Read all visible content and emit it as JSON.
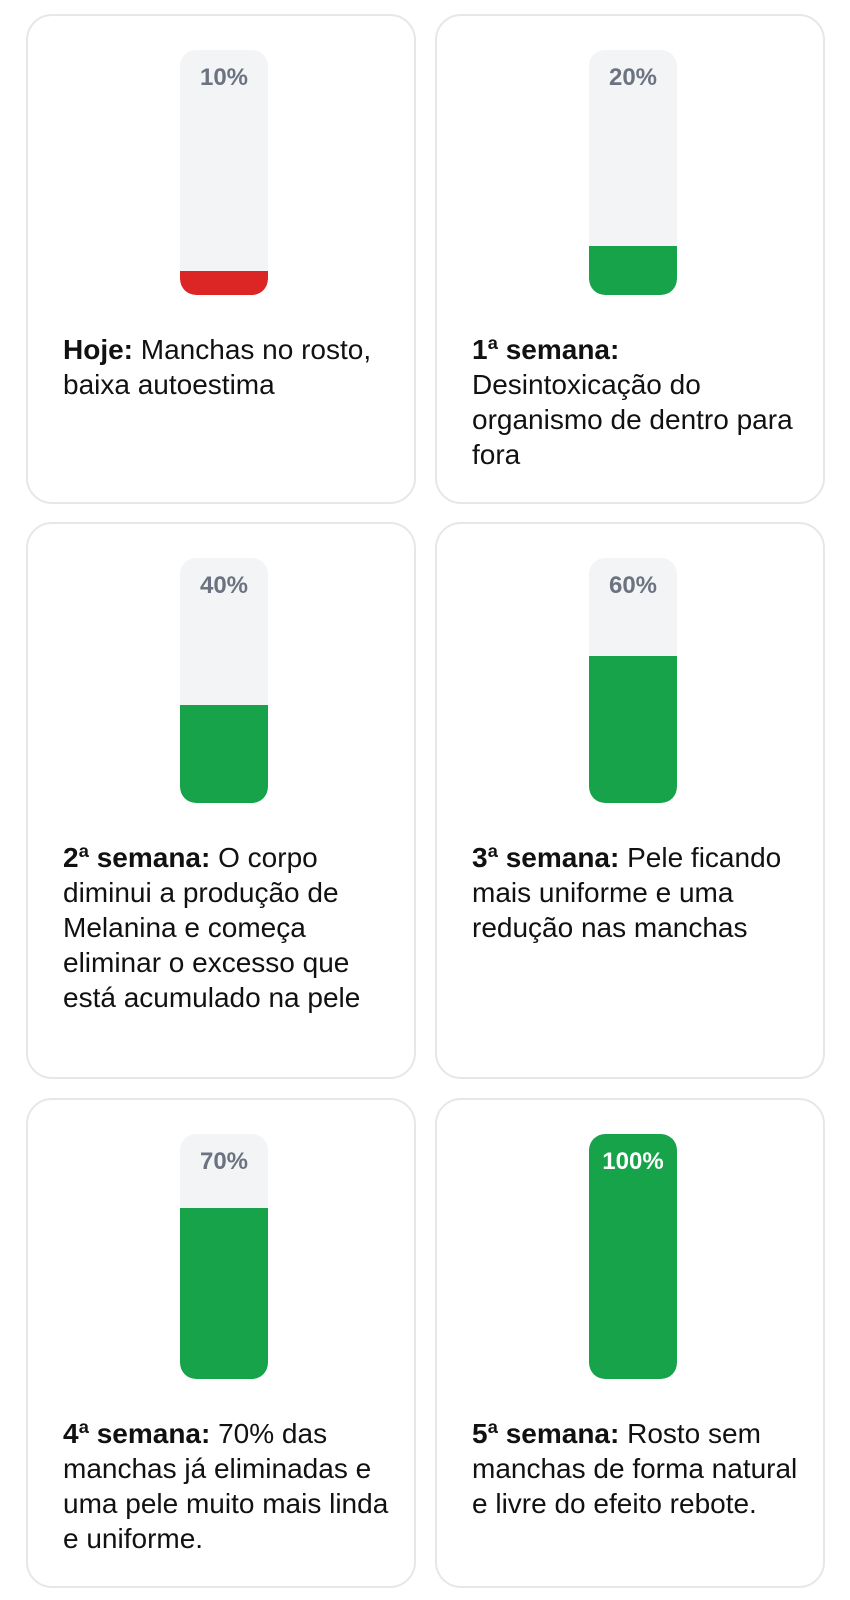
{
  "colors": {
    "track": "#f3f4f6",
    "red": "#dc2626",
    "green": "#16a34a",
    "percent_text": "#6b7280",
    "border": "#e6e7ea"
  },
  "cards": [
    {
      "percent_label": "10%",
      "progress": 0.1,
      "fill_color": "#dc2626",
      "title": "Hoje:",
      "text": " Manchas no rosto, baixa autoestima"
    },
    {
      "percent_label": "20%",
      "progress": 0.2,
      "fill_color": "#16a34a",
      "title": "1ª semana:",
      "text": " Desintoxicação do organismo de dentro para fora"
    },
    {
      "percent_label": "40%",
      "progress": 0.4,
      "fill_color": "#16a34a",
      "title": "2ª semana:",
      "text": " O corpo diminui a produção de Melanina e começa eliminar o excesso que está acumulado na pele"
    },
    {
      "percent_label": "60%",
      "progress": 0.6,
      "fill_color": "#16a34a",
      "title": "3ª semana:",
      "text": " Pele ficando mais uniforme e uma redução nas manchas"
    },
    {
      "percent_label": "70%",
      "progress": 0.7,
      "fill_color": "#16a34a",
      "title": "4ª semana:",
      "text": " 70% das manchas já eliminadas e uma pele muito mais linda e uniforme."
    },
    {
      "percent_label": "100%",
      "progress": 1.0,
      "fill_color": "#16a34a",
      "title": "5ª semana:",
      "text": " Rosto sem manchas de forma natural e livre do efeito rebote."
    }
  ]
}
